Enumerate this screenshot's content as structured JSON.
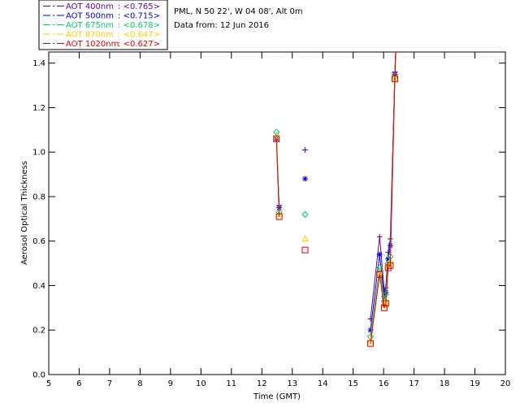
{
  "header": {
    "site_line": "PML, N 50 22', W 04 08', Alt 0m",
    "date_line": "Data from: 12 Jun 2016"
  },
  "chart_data": {
    "type": "scatter",
    "xlabel": "Time (GMT)",
    "ylabel": "Aerosol Optical Thickness",
    "xlim": [
      5,
      20
    ],
    "ylim": [
      0,
      1.45
    ],
    "x_ticks": [
      5,
      6,
      7,
      8,
      9,
      10,
      11,
      12,
      13,
      14,
      15,
      16,
      17,
      18,
      19,
      20
    ],
    "y_ticks": [
      0.0,
      0.2,
      0.4,
      0.6,
      0.8,
      1.0,
      1.2,
      1.4
    ],
    "y_tick_labels": [
      "0.0",
      "0.2",
      "0.4",
      "0.6",
      "0.8",
      "1.0",
      "1.2",
      "1.4"
    ],
    "grid": false,
    "legend_position": "top-left",
    "series": [
      {
        "name": "AOT  400nm",
        "mean_label": "<0.765>",
        "color": "#660099",
        "marker": "plus",
        "x": [
          12.48,
          12.57,
          13.42,
          15.57,
          15.87,
          16.02,
          16.07,
          16.15,
          16.22,
          16.37
        ],
        "y": [
          1.06,
          0.76,
          1.01,
          0.25,
          0.62,
          0.38,
          0.39,
          0.55,
          0.61,
          1.36
        ]
      },
      {
        "name": "AOT  500nm",
        "mean_label": "<0.715>",
        "color": "#0000dd",
        "marker": "asterisk",
        "x": [
          12.48,
          12.57,
          13.42,
          15.57,
          15.87,
          16.02,
          16.07,
          16.15,
          16.22,
          16.37
        ],
        "y": [
          1.06,
          0.75,
          0.88,
          0.2,
          0.54,
          0.35,
          0.37,
          0.52,
          0.58,
          1.35
        ]
      },
      {
        "name": "AOT  675nm",
        "mean_label": "<0.678>",
        "color": "#00cc66",
        "marker": "diamond",
        "x": [
          12.48,
          12.57,
          13.42,
          15.57,
          15.87,
          16.02,
          16.07,
          16.15,
          16.22,
          16.37
        ],
        "y": [
          1.09,
          0.73,
          0.72,
          0.17,
          0.48,
          0.33,
          0.36,
          0.5,
          0.53,
          1.34
        ]
      },
      {
        "name": "AOT  870nm",
        "mean_label": "<0.647>",
        "color": "#ffcc00",
        "marker": "triangle",
        "x": [
          12.48,
          12.57,
          13.42,
          15.57,
          15.87,
          16.02,
          16.07,
          16.15,
          16.22,
          16.37
        ],
        "y": [
          1.07,
          0.72,
          0.61,
          0.15,
          0.46,
          0.31,
          0.33,
          0.49,
          0.51,
          1.33
        ]
      },
      {
        "name": "AOT 1020nm",
        "mean_label": "<0.627>",
        "color": "#dd0000",
        "marker": "square",
        "x": [
          12.48,
          12.57,
          13.42,
          15.57,
          15.87,
          16.02,
          16.07,
          16.15,
          16.22,
          16.37
        ],
        "y": [
          1.06,
          0.71,
          0.56,
          0.14,
          0.45,
          0.3,
          0.32,
          0.48,
          0.49,
          1.33
        ]
      }
    ]
  }
}
